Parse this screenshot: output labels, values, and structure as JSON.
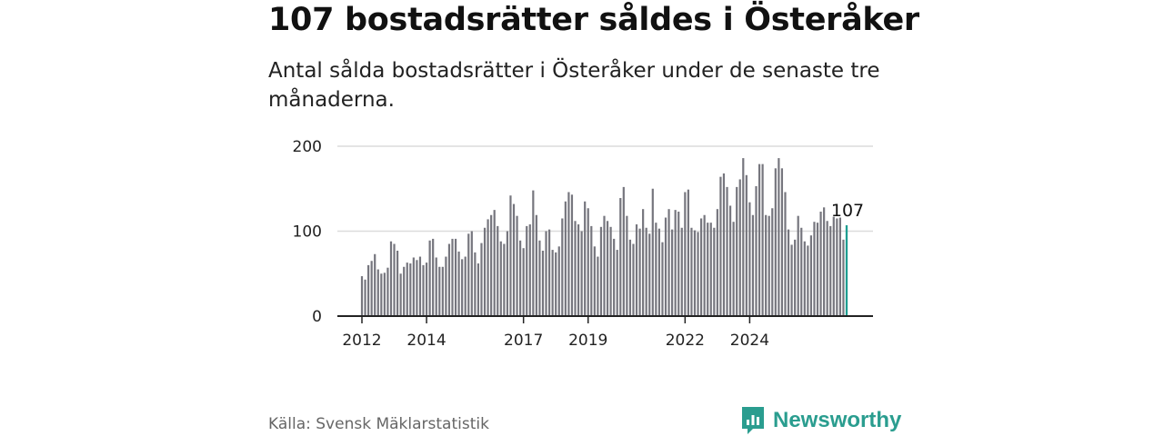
{
  "title": "107 bostadsrätter såldes i Österåker",
  "subtitle": "Antal sålda bostadsrätter i Österåker under de senaste tre månaderna.",
  "source": "Källa: Svensk Mäklarstatistik",
  "brand": "Newsworthy",
  "colors": {
    "bar": "#76767e",
    "highlight": "#1f9e91",
    "grid": "#dcdcdc",
    "axis": "#222222",
    "brand": "#2a9d8f"
  },
  "chart_data": {
    "type": "bar",
    "title": "107 bostadsrätter såldes i Österåker",
    "xlabel": "",
    "ylabel": "",
    "ylim": [
      0,
      200
    ],
    "yticks": [
      0,
      100,
      200
    ],
    "x_start": "2012-01",
    "x_end": "2024-01",
    "xticks": [
      {
        "label": "2012",
        "index": 0
      },
      {
        "label": "2014",
        "index": 20
      },
      {
        "label": "2017",
        "index": 50
      },
      {
        "label": "2019",
        "index": 70
      },
      {
        "label": "2022",
        "index": 100
      },
      {
        "label": "2024",
        "index": 120
      }
    ],
    "values": [
      47,
      43,
      60,
      65,
      73,
      55,
      50,
      51,
      57,
      88,
      85,
      77,
      50,
      58,
      63,
      62,
      69,
      66,
      70,
      60,
      63,
      89,
      91,
      69,
      58,
      58,
      70,
      85,
      91,
      91,
      76,
      67,
      70,
      97,
      100,
      75,
      62,
      86,
      104,
      114,
      119,
      125,
      106,
      88,
      85,
      100,
      142,
      132,
      118,
      89,
      80,
      106,
      108,
      148,
      119,
      89,
      77,
      100,
      102,
      78,
      75,
      82,
      115,
      135,
      146,
      143,
      112,
      108,
      100,
      135,
      127,
      106,
      82,
      70,
      105,
      118,
      112,
      105,
      91,
      78,
      139,
      152,
      118,
      90,
      85,
      108,
      103,
      126,
      104,
      97,
      150,
      110,
      103,
      87,
      116,
      126,
      102,
      125,
      123,
      104,
      146,
      149,
      104,
      101,
      99,
      115,
      119,
      110,
      110,
      104,
      126,
      164,
      168,
      152,
      130,
      111,
      152,
      161,
      186,
      166,
      134,
      119,
      153,
      179,
      179,
      119,
      118,
      127,
      174,
      186,
      174,
      146,
      102,
      84,
      90,
      118,
      104,
      88,
      83,
      95,
      111,
      110,
      123,
      128,
      112,
      106,
      117,
      115,
      116,
      90,
      107
    ]
  }
}
